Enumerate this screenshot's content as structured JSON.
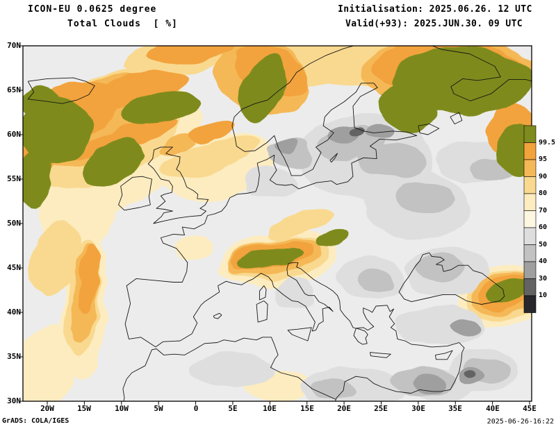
{
  "header": {
    "model_line": "ICON-EU 0.0625 degree",
    "field_line": "Total Clouds  [ %]",
    "init_line": "Initialisation: 2025.06.26. 12 UTC",
    "valid_line": "Valid(+93): 2025.JUN.30. 09 UTC"
  },
  "footer": {
    "credit": "GrADS: COLA/IGES",
    "timestamp": "2025-06-26-16:22"
  },
  "axes": {
    "lat_labels": [
      "70N",
      "65N",
      "60N",
      "55N",
      "50N",
      "45N",
      "40N",
      "35N",
      "30N"
    ],
    "lat_values": [
      70,
      65,
      60,
      55,
      50,
      45,
      40,
      35,
      30
    ],
    "lon_labels": [
      "20W",
      "15W",
      "10W",
      "5W",
      "0",
      "5E",
      "10E",
      "15E",
      "20E",
      "25E",
      "30E",
      "35E",
      "40E",
      "45E"
    ],
    "lon_values": [
      -20,
      -15,
      -10,
      -5,
      0,
      5,
      10,
      15,
      20,
      25,
      30,
      35,
      40,
      45
    ]
  },
  "colorbar": {
    "labels_top_to_bottom": [
      "99.5",
      "95",
      "90",
      "80",
      "70",
      "60",
      "50",
      "40",
      "30",
      "10"
    ],
    "colors_top_to_bottom": [
      "#7e8b1e",
      "#f2a33c",
      "#f5b857",
      "#f9d98f",
      "#fcecc0",
      "#fdf6e0",
      "#dedede",
      "#c2c2c2",
      "#9f9f9f",
      "#636363",
      "#26262c"
    ]
  },
  "chart_data": {
    "type": "heatmap",
    "title": "Total Clouds [%]",
    "model": "ICON-EU 0.0625 degree",
    "init": "2025.06.26. 12 UTC",
    "valid": "2025.JUN.30. 09 UTC",
    "lead_hours": 93,
    "units": "%",
    "lon_range": [
      -23.3,
      45.3
    ],
    "lat_range": [
      30,
      70
    ],
    "levels": [
      10,
      30,
      40,
      50,
      60,
      70,
      80,
      90,
      95,
      99.5
    ],
    "background": "#ececec",
    "palette": {
      "995": "#7e8b1e",
      "95": "#f2a33c",
      "90": "#f5b857",
      "80": "#f9d98f",
      "70": "#fcecc0",
      "60": "#fdf6e0",
      "50": "#dedede",
      "40": "#c2c2c2",
      "30": "#9f9f9f",
      "10": "#636363",
      "0": "#26262c"
    },
    "region_format": [
      "lon",
      "lat",
      "width_deg",
      "height_deg",
      "rotation_deg",
      "level"
    ],
    "cloud_regions": [
      [
        -12,
        59,
        26,
        15,
        -22,
        "70"
      ],
      [
        -16,
        52,
        10,
        12,
        10,
        "70"
      ],
      [
        3,
        56.5,
        16,
        7,
        -12,
        "70"
      ],
      [
        -15,
        40.5,
        6,
        16,
        4,
        "70"
      ],
      [
        -20.5,
        33.5,
        8,
        11,
        18,
        "70"
      ],
      [
        11,
        46,
        16,
        6,
        -8,
        "70"
      ],
      [
        41.5,
        42,
        13,
        7,
        -15,
        "70"
      ],
      [
        11,
        31.8,
        9,
        4,
        0,
        "70"
      ],
      [
        -0.5,
        47.5,
        5,
        2.5,
        -10,
        "70"
      ],
      [
        20,
        68.8,
        34,
        7,
        3,
        "80"
      ],
      [
        -13,
        60.5,
        23,
        12,
        -22,
        "80"
      ],
      [
        -15.2,
        41.5,
        4.5,
        13,
        4,
        "80"
      ],
      [
        11,
        46,
        14,
        4.5,
        -8,
        "80"
      ],
      [
        2,
        57.5,
        14,
        3.5,
        -15,
        "80"
      ],
      [
        14,
        50,
        9,
        2.5,
        -20,
        "80"
      ],
      [
        41.8,
        42,
        11,
        5.5,
        -15,
        "80"
      ],
      [
        -19,
        46,
        6,
        9,
        15,
        "80"
      ],
      [
        -3,
        68.5,
        14,
        4,
        -6,
        "80"
      ],
      [
        23,
        57.5,
        18,
        10,
        0,
        "50"
      ],
      [
        30,
        52,
        14,
        8,
        0,
        "50"
      ],
      [
        34,
        44.5,
        11,
        5.5,
        0,
        "50"
      ],
      [
        23.5,
        44,
        9,
        5,
        0,
        "50"
      ],
      [
        33,
        38.5,
        12,
        4.5,
        0,
        "50"
      ],
      [
        10,
        54.5,
        7,
        3.5,
        0,
        "50"
      ],
      [
        38,
        57,
        11,
        4.5,
        0,
        "50"
      ],
      [
        13.5,
        42.3,
        5,
        3.5,
        0,
        "50"
      ],
      [
        5,
        33.5,
        12,
        4,
        0,
        "50"
      ],
      [
        21,
        31.5,
        14,
        4.5,
        0,
        "50"
      ],
      [
        33.5,
        31.8,
        9,
        3.5,
        0,
        "50"
      ],
      [
        38.5,
        33.5,
        9,
        5,
        0,
        "50"
      ],
      [
        21,
        59,
        8,
        4,
        -10,
        "40"
      ],
      [
        26.5,
        57,
        9,
        4,
        0,
        "40"
      ],
      [
        31,
        53,
        8,
        4,
        0,
        "40"
      ],
      [
        33,
        45,
        6,
        3,
        0,
        "40"
      ],
      [
        24,
        43.5,
        4.5,
        2.5,
        0,
        "40"
      ],
      [
        13,
        58,
        6,
        3,
        0,
        "40"
      ],
      [
        40,
        56,
        6,
        2.5,
        0,
        "40"
      ],
      [
        18.5,
        31.2,
        6,
        2.5,
        0,
        "40"
      ],
      [
        30.5,
        32.3,
        9,
        3,
        0,
        "40"
      ],
      [
        39,
        33.5,
        6,
        3,
        0,
        "40"
      ],
      [
        20,
        60,
        4,
        2,
        0,
        "30"
      ],
      [
        24.5,
        60.5,
        4,
        1.8,
        0,
        "30"
      ],
      [
        12.5,
        58.8,
        3,
        1.5,
        0,
        "30"
      ],
      [
        36.5,
        38.2,
        4,
        2,
        0,
        "30"
      ],
      [
        31.5,
        32,
        4.5,
        2,
        0,
        "30"
      ],
      [
        37,
        32.8,
        3.5,
        1.8,
        0,
        "30"
      ],
      [
        21.5,
        60.3,
        1.8,
        0.9,
        0,
        "10"
      ],
      [
        36.8,
        32.9,
        1.6,
        0.8,
        0,
        "10"
      ],
      [
        -14,
        61.5,
        19,
        9,
        -24,
        "90"
      ],
      [
        9,
        66.5,
        13,
        8,
        25,
        "90"
      ],
      [
        34,
        67,
        24,
        8,
        2,
        "90"
      ],
      [
        -15,
        42,
        3.5,
        11,
        4,
        "90"
      ],
      [
        10.5,
        46.1,
        13,
        3.8,
        -9,
        "90"
      ],
      [
        42,
        42.2,
        10,
        4.5,
        -15,
        "90"
      ],
      [
        -2.5,
        59,
        5,
        1.8,
        -15,
        "90"
      ],
      [
        -8,
        64.8,
        15,
        3.5,
        -12,
        "95"
      ],
      [
        -17,
        62.5,
        14,
        6.5,
        -25,
        "95"
      ],
      [
        -22,
        57,
        5,
        10,
        5,
        "95"
      ],
      [
        10,
        67.2,
        11,
        5,
        25,
        "95"
      ],
      [
        34,
        67.5,
        21,
        6,
        2,
        "95"
      ],
      [
        42.5,
        60.5,
        7,
        6,
        0,
        "95"
      ],
      [
        10.2,
        46.2,
        11.5,
        3,
        -9,
        "95"
      ],
      [
        42.3,
        42.3,
        8.5,
        3.5,
        -15,
        "95"
      ],
      [
        -10,
        59.5,
        16,
        2.2,
        -18,
        "95"
      ],
      [
        -14.6,
        43.5,
        2.8,
        8,
        5,
        "95"
      ],
      [
        -1,
        69.3,
        12,
        2.5,
        -6,
        "95"
      ],
      [
        2,
        60.5,
        6,
        2,
        -20,
        "95"
      ],
      [
        -19,
        60.5,
        10,
        7.5,
        -20,
        "995"
      ],
      [
        -21.8,
        55,
        4.5,
        7,
        0,
        "995"
      ],
      [
        -11,
        56.8,
        9,
        4.5,
        -28,
        "995"
      ],
      [
        -5,
        62.8,
        11,
        3.2,
        -14,
        "995"
      ],
      [
        9,
        65.2,
        5.5,
        8,
        18,
        "995"
      ],
      [
        36,
        66,
        19,
        7.5,
        0,
        "995"
      ],
      [
        28.5,
        63,
        8,
        5,
        28,
        "995"
      ],
      [
        43.5,
        58,
        6,
        6,
        0,
        "995"
      ],
      [
        10,
        45.9,
        9.5,
        2.2,
        -9,
        "995"
      ],
      [
        18.5,
        48.3,
        5,
        1.6,
        -22,
        "995"
      ],
      [
        42.8,
        42.4,
        7,
        2.4,
        -14,
        "995"
      ],
      [
        -21,
        63.5,
        6,
        4,
        -15,
        "995"
      ]
    ]
  }
}
